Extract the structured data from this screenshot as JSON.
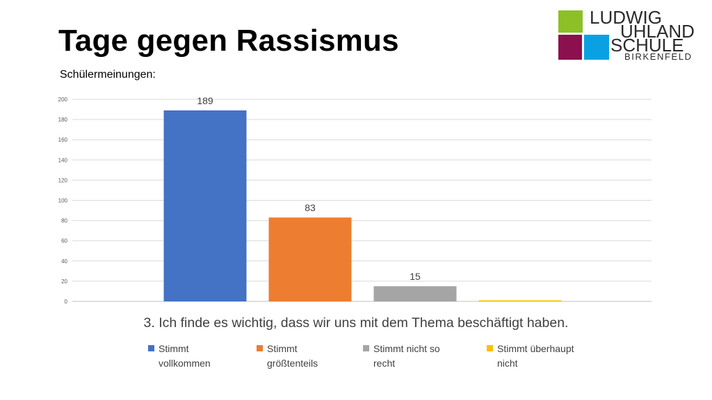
{
  "slide": {
    "title": "Tage gegen Rassismus",
    "subtitle": "Schülermeinungen:"
  },
  "logo": {
    "line1": "LUDWIG",
    "line2": "UHLAND",
    "line3": "SCHULE",
    "line4": "BIRKENFELD",
    "colors": {
      "green": "#8cc026",
      "magenta": "#8c0f4e",
      "blue": "#0aa1e2"
    }
  },
  "chart_data": {
    "type": "bar",
    "title": "3. Ich finde es wichtig, dass wir uns mit dem Thema beschäftigt haben.",
    "categories": [
      "Stimmt vollkommen",
      "Stimmt größtenteils",
      "Stimmt nicht so recht",
      "Stimmt überhaupt nicht"
    ],
    "values": [
      189,
      83,
      15,
      0
    ],
    "data_labels": [
      "189",
      "83",
      "15",
      ""
    ],
    "colors": [
      "#4472c4",
      "#ed7d31",
      "#a5a5a5",
      "#ffc000"
    ],
    "ylim": [
      0,
      200
    ],
    "yticks": [
      0,
      20,
      40,
      60,
      80,
      100,
      120,
      140,
      160,
      180,
      200
    ],
    "grid": true,
    "legend_position": "bottom",
    "legend": [
      {
        "line1": "Stimmt",
        "line2": "vollkommen"
      },
      {
        "line1": "Stimmt",
        "line2": "größtenteils"
      },
      {
        "line1": "Stimmt nicht so",
        "line2": "recht"
      },
      {
        "line1": "Stimmt überhaupt",
        "line2": "nicht"
      }
    ]
  }
}
